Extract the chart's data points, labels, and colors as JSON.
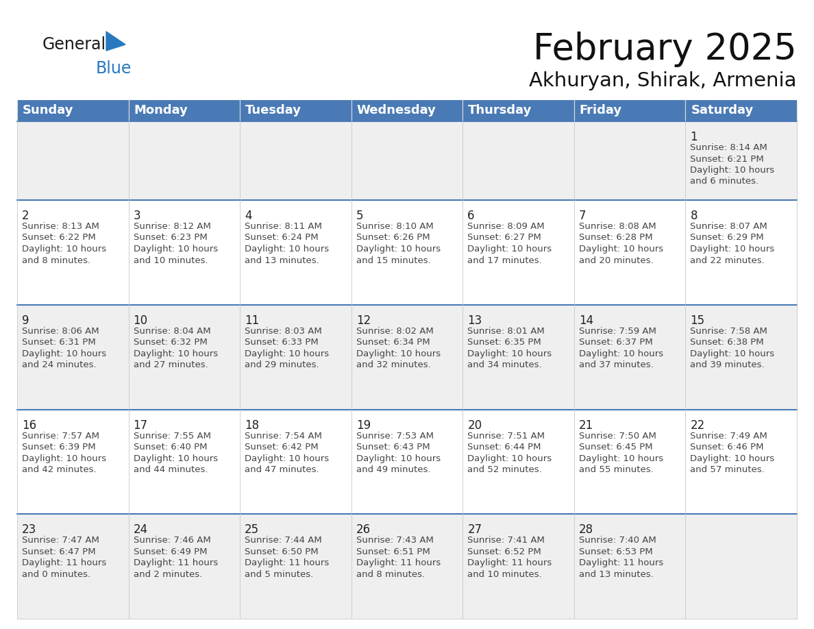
{
  "title": "February 2025",
  "subtitle": "Akhuryan, Shirak, Armenia",
  "header_color": "#4a7ab5",
  "header_text_color": "#FFFFFF",
  "cell_bg_row0": "#EFEFEF",
  "cell_bg_even": "#FFFFFF",
  "cell_bg_odd": "#EFEFEF",
  "border_color": "#4a7ab5",
  "text_color_dark": "#222222",
  "text_color_info": "#444444",
  "day_headers": [
    "Sunday",
    "Monday",
    "Tuesday",
    "Wednesday",
    "Thursday",
    "Friday",
    "Saturday"
  ],
  "title_fontsize": 38,
  "subtitle_fontsize": 21,
  "header_fontsize": 13,
  "day_num_fontsize": 12,
  "info_fontsize": 9.5,
  "days": [
    {
      "day": 1,
      "col": 6,
      "row": 0,
      "sunrise": "8:14 AM",
      "sunset": "6:21 PM",
      "daylight_hours": 10,
      "daylight_minutes": 6
    },
    {
      "day": 2,
      "col": 0,
      "row": 1,
      "sunrise": "8:13 AM",
      "sunset": "6:22 PM",
      "daylight_hours": 10,
      "daylight_minutes": 8
    },
    {
      "day": 3,
      "col": 1,
      "row": 1,
      "sunrise": "8:12 AM",
      "sunset": "6:23 PM",
      "daylight_hours": 10,
      "daylight_minutes": 10
    },
    {
      "day": 4,
      "col": 2,
      "row": 1,
      "sunrise": "8:11 AM",
      "sunset": "6:24 PM",
      "daylight_hours": 10,
      "daylight_minutes": 13
    },
    {
      "day": 5,
      "col": 3,
      "row": 1,
      "sunrise": "8:10 AM",
      "sunset": "6:26 PM",
      "daylight_hours": 10,
      "daylight_minutes": 15
    },
    {
      "day": 6,
      "col": 4,
      "row": 1,
      "sunrise": "8:09 AM",
      "sunset": "6:27 PM",
      "daylight_hours": 10,
      "daylight_minutes": 17
    },
    {
      "day": 7,
      "col": 5,
      "row": 1,
      "sunrise": "8:08 AM",
      "sunset": "6:28 PM",
      "daylight_hours": 10,
      "daylight_minutes": 20
    },
    {
      "day": 8,
      "col": 6,
      "row": 1,
      "sunrise": "8:07 AM",
      "sunset": "6:29 PM",
      "daylight_hours": 10,
      "daylight_minutes": 22
    },
    {
      "day": 9,
      "col": 0,
      "row": 2,
      "sunrise": "8:06 AM",
      "sunset": "6:31 PM",
      "daylight_hours": 10,
      "daylight_minutes": 24
    },
    {
      "day": 10,
      "col": 1,
      "row": 2,
      "sunrise": "8:04 AM",
      "sunset": "6:32 PM",
      "daylight_hours": 10,
      "daylight_minutes": 27
    },
    {
      "day": 11,
      "col": 2,
      "row": 2,
      "sunrise": "8:03 AM",
      "sunset": "6:33 PM",
      "daylight_hours": 10,
      "daylight_minutes": 29
    },
    {
      "day": 12,
      "col": 3,
      "row": 2,
      "sunrise": "8:02 AM",
      "sunset": "6:34 PM",
      "daylight_hours": 10,
      "daylight_minutes": 32
    },
    {
      "day": 13,
      "col": 4,
      "row": 2,
      "sunrise": "8:01 AM",
      "sunset": "6:35 PM",
      "daylight_hours": 10,
      "daylight_minutes": 34
    },
    {
      "day": 14,
      "col": 5,
      "row": 2,
      "sunrise": "7:59 AM",
      "sunset": "6:37 PM",
      "daylight_hours": 10,
      "daylight_minutes": 37
    },
    {
      "day": 15,
      "col": 6,
      "row": 2,
      "sunrise": "7:58 AM",
      "sunset": "6:38 PM",
      "daylight_hours": 10,
      "daylight_minutes": 39
    },
    {
      "day": 16,
      "col": 0,
      "row": 3,
      "sunrise": "7:57 AM",
      "sunset": "6:39 PM",
      "daylight_hours": 10,
      "daylight_minutes": 42
    },
    {
      "day": 17,
      "col": 1,
      "row": 3,
      "sunrise": "7:55 AM",
      "sunset": "6:40 PM",
      "daylight_hours": 10,
      "daylight_minutes": 44
    },
    {
      "day": 18,
      "col": 2,
      "row": 3,
      "sunrise": "7:54 AM",
      "sunset": "6:42 PM",
      "daylight_hours": 10,
      "daylight_minutes": 47
    },
    {
      "day": 19,
      "col": 3,
      "row": 3,
      "sunrise": "7:53 AM",
      "sunset": "6:43 PM",
      "daylight_hours": 10,
      "daylight_minutes": 49
    },
    {
      "day": 20,
      "col": 4,
      "row": 3,
      "sunrise": "7:51 AM",
      "sunset": "6:44 PM",
      "daylight_hours": 10,
      "daylight_minutes": 52
    },
    {
      "day": 21,
      "col": 5,
      "row": 3,
      "sunrise": "7:50 AM",
      "sunset": "6:45 PM",
      "daylight_hours": 10,
      "daylight_minutes": 55
    },
    {
      "day": 22,
      "col": 6,
      "row": 3,
      "sunrise": "7:49 AM",
      "sunset": "6:46 PM",
      "daylight_hours": 10,
      "daylight_minutes": 57
    },
    {
      "day": 23,
      "col": 0,
      "row": 4,
      "sunrise": "7:47 AM",
      "sunset": "6:47 PM",
      "daylight_hours": 11,
      "daylight_minutes": 0
    },
    {
      "day": 24,
      "col": 1,
      "row": 4,
      "sunrise": "7:46 AM",
      "sunset": "6:49 PM",
      "daylight_hours": 11,
      "daylight_minutes": 2
    },
    {
      "day": 25,
      "col": 2,
      "row": 4,
      "sunrise": "7:44 AM",
      "sunset": "6:50 PM",
      "daylight_hours": 11,
      "daylight_minutes": 5
    },
    {
      "day": 26,
      "col": 3,
      "row": 4,
      "sunrise": "7:43 AM",
      "sunset": "6:51 PM",
      "daylight_hours": 11,
      "daylight_minutes": 8
    },
    {
      "day": 27,
      "col": 4,
      "row": 4,
      "sunrise": "7:41 AM",
      "sunset": "6:52 PM",
      "daylight_hours": 11,
      "daylight_minutes": 10
    },
    {
      "day": 28,
      "col": 5,
      "row": 4,
      "sunrise": "7:40 AM",
      "sunset": "6:53 PM",
      "daylight_hours": 11,
      "daylight_minutes": 13
    }
  ],
  "num_rows": 5,
  "num_cols": 7,
  "logo_text_general": "General",
  "logo_text_blue": "Blue",
  "logo_color_general": "#1a1a1a",
  "logo_color_blue": "#2878C0",
  "logo_triangle_color": "#2878C0"
}
